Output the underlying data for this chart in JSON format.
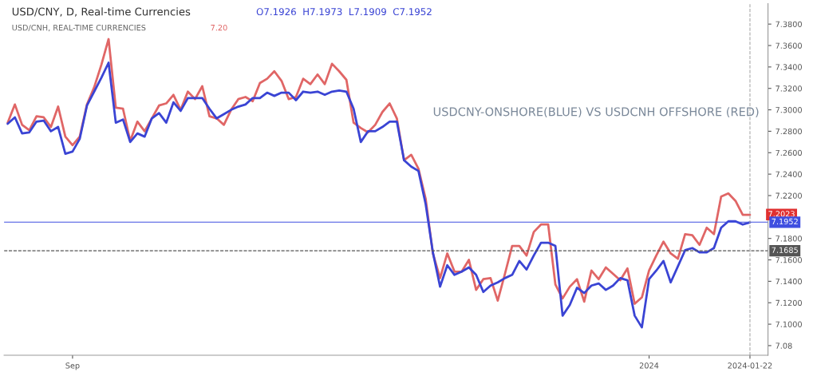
{
  "chart_data": {
    "type": "line",
    "categories": [
      null,
      null,
      null,
      null,
      null,
      null,
      null,
      null,
      null,
      "Sep",
      null,
      null,
      null,
      null,
      null,
      null,
      null,
      null,
      null,
      null,
      null,
      null,
      null,
      null,
      null,
      null,
      null,
      null,
      null,
      null,
      null,
      null,
      null,
      null,
      null,
      null,
      null,
      null,
      null,
      null,
      null,
      null,
      null,
      null,
      null,
      null,
      null,
      null,
      null,
      null,
      null,
      null,
      null,
      null,
      null,
      null,
      null,
      null,
      null,
      null,
      null,
      null,
      null,
      null,
      null,
      null,
      null,
      null,
      null,
      null,
      null,
      null,
      null,
      null,
      null,
      null,
      null,
      null,
      null,
      null,
      null,
      null,
      null,
      null,
      null,
      null,
      null,
      null,
      null,
      "2024",
      null,
      null,
      null,
      null,
      null,
      null,
      null,
      null,
      null,
      null,
      null,
      null,
      null,
      "2024-01-22"
    ],
    "series": [
      {
        "color": "#e06666",
        "values": [
          7.288,
          7.305,
          7.286,
          7.281,
          7.294,
          7.293,
          7.284,
          7.303,
          7.275,
          7.267,
          7.275,
          7.305,
          7.321,
          7.342,
          7.366,
          7.302,
          7.301,
          7.271,
          7.289,
          7.28,
          7.292,
          7.304,
          7.306,
          7.314,
          7.3,
          7.317,
          7.31,
          7.322,
          7.294,
          7.292,
          7.286,
          7.3,
          7.31,
          7.312,
          7.308,
          7.325,
          7.329,
          7.336,
          7.327,
          7.31,
          7.312,
          7.329,
          7.324,
          7.333,
          7.324,
          7.343,
          7.336,
          7.328,
          7.288,
          7.283,
          7.279,
          7.286,
          7.298,
          7.306,
          7.292,
          7.253,
          7.258,
          7.245,
          7.217,
          7.166,
          7.143,
          7.166,
          7.149,
          7.149,
          7.16,
          7.132,
          7.142,
          7.143,
          7.122,
          7.147,
          7.173,
          7.173,
          7.164,
          7.186,
          7.193,
          7.193,
          7.137,
          7.124,
          7.135,
          7.142,
          7.121,
          7.15,
          7.142,
          7.153,
          7.147,
          7.141,
          7.152,
          7.119,
          7.125,
          7.15,
          7.164,
          7.177,
          7.166,
          7.161,
          7.184,
          7.183,
          7.174,
          7.19,
          7.184,
          7.219,
          7.222,
          7.215,
          7.202,
          7.202
        ]
      },
      {
        "color": "#3a44d4",
        "values": [
          7.287,
          7.293,
          7.278,
          7.279,
          7.289,
          7.29,
          7.28,
          7.284,
          7.259,
          7.261,
          7.273,
          7.304,
          7.317,
          7.33,
          7.344,
          7.288,
          7.291,
          7.27,
          7.278,
          7.275,
          7.292,
          7.297,
          7.288,
          7.307,
          7.299,
          7.311,
          7.311,
          7.311,
          7.301,
          7.292,
          7.296,
          7.3,
          7.303,
          7.305,
          7.311,
          7.311,
          7.316,
          7.313,
          7.316,
          7.316,
          7.309,
          7.317,
          7.316,
          7.317,
          7.314,
          7.317,
          7.318,
          7.317,
          7.301,
          7.27,
          7.28,
          7.28,
          7.284,
          7.289,
          7.289,
          7.253,
          7.247,
          7.243,
          7.212,
          7.167,
          7.135,
          7.155,
          7.146,
          7.149,
          7.153,
          7.146,
          7.13,
          7.136,
          7.139,
          7.143,
          7.146,
          7.159,
          7.151,
          7.164,
          7.176,
          7.176,
          7.173,
          7.108,
          7.118,
          7.134,
          7.129,
          7.136,
          7.138,
          7.132,
          7.136,
          7.143,
          7.141,
          7.108,
          7.097,
          7.142,
          7.15,
          7.159,
          7.139,
          7.154,
          7.169,
          7.171,
          7.167,
          7.167,
          7.171,
          7.19,
          7.196,
          7.196,
          7.193,
          7.195
        ]
      }
    ],
    "ylim": [
      7.071,
      7.399
    ],
    "yticks": [
      {
        "value": 7.08,
        "label": "7.08"
      },
      {
        "value": 7.1,
        "label": "7.1000"
      },
      {
        "value": 7.12,
        "label": "7.1200"
      },
      {
        "value": 7.14,
        "label": "7.1400"
      },
      {
        "value": 7.16,
        "label": "7.1600"
      },
      {
        "value": 7.18,
        "label": "7.1800"
      },
      {
        "value": 7.22,
        "label": "7.2200"
      },
      {
        "value": 7.24,
        "label": "7.2400"
      },
      {
        "value": 7.26,
        "label": "7.2600"
      },
      {
        "value": 7.28,
        "label": "7.2800"
      },
      {
        "value": 7.3,
        "label": "7.3000"
      },
      {
        "value": 7.32,
        "label": "7.3200"
      },
      {
        "value": 7.34,
        "label": "7.3400"
      },
      {
        "value": 7.36,
        "label": "7.3600"
      },
      {
        "value": 7.38,
        "label": "7.3800"
      }
    ],
    "ref_lines": [
      {
        "axis": "y",
        "value": 7.1952,
        "label": "7.1952",
        "color": "#3f4fe0",
        "line_style": "solid"
      },
      {
        "axis": "y",
        "value": 7.1685,
        "label": "7.1685",
        "color": "#555555",
        "line_style": "dashed"
      },
      {
        "axis": "x",
        "value": "2024-01-22",
        "color": "#aaaaaa",
        "line_style": "dashed"
      }
    ],
    "annotations": [
      "USD/CNY, D, Real-time Currencies",
      "O7.1926  H7.1973  L7.1909  C7.1952",
      "USD/CNH, REAL-TIME CURRENCIES",
      "7.20",
      "USDCNY-ONSHORE(BLUE) VS USDCNH OFFSHORE (RED)",
      {
        "text": "7.2023",
        "x": "2024-01-22",
        "y": 7.2023
      }
    ],
    "grid": false,
    "marker": "none",
    "line_style": "solid",
    "legend": false
  }
}
